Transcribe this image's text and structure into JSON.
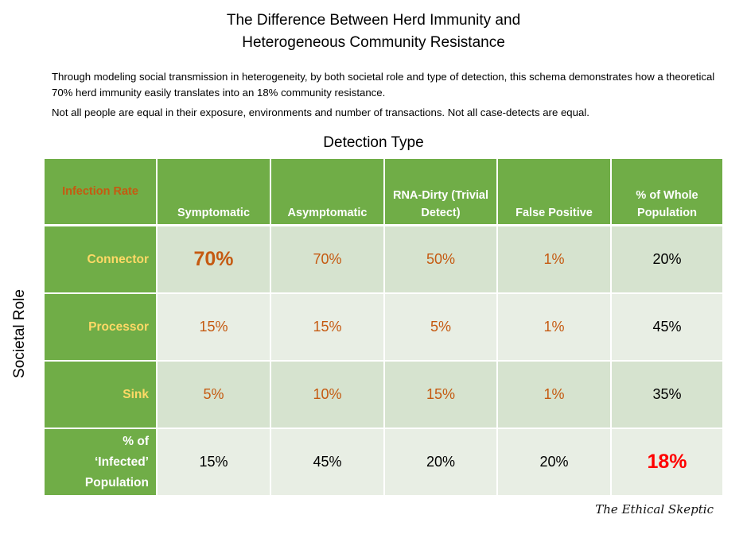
{
  "title_line1": "The Difference Between Herd Immunity and",
  "title_line2": "Heterogeneous Community Resistance",
  "paragraph1": "Through modeling social transmission in heterogeneity, by both societal role and type of detection, this schema demonstrates how a theoretical 70% herd immunity easily translates into an 18% community resistance.",
  "paragraph2": "Not all people are equal in their exposure, environments and number of transactions. Not all case-detects are equal.",
  "signature": "The Ethical Skeptic",
  "colors": {
    "header_green": "#70ad47",
    "row_label_yellow": "#ffd966",
    "value_orange": "#c55a11",
    "highlight_red": "#ff0000",
    "row_odd": "#d6e3cf",
    "row_even": "#e8eee4"
  },
  "chart_data": {
    "type": "table",
    "title": "The Difference Between Herd Immunity and Heterogeneous Community Resistance",
    "xlabel": "Detection Type",
    "ylabel": "Societal Role",
    "corner_label": "Infection Rate",
    "columns": [
      "Symptomatic",
      "Asymptomatic",
      "RNA-Dirty (Trivial Detect)",
      "False Positive",
      "% of Whole Population"
    ],
    "rows": [
      {
        "label": "Connector",
        "values": [
          "70%",
          "70%",
          "50%",
          "1%",
          "20%"
        ]
      },
      {
        "label": "Processor",
        "values": [
          "15%",
          "15%",
          "5%",
          "1%",
          "45%"
        ]
      },
      {
        "label": "Sink",
        "values": [
          "5%",
          "10%",
          "15%",
          "1%",
          "35%"
        ]
      },
      {
        "label": "% of ‘Infected’ Population",
        "values": [
          "15%",
          "45%",
          "20%",
          "20%",
          "18%"
        ]
      }
    ],
    "highlights": {
      "herd_immunity": "70%",
      "community_resistance": "18%"
    }
  }
}
